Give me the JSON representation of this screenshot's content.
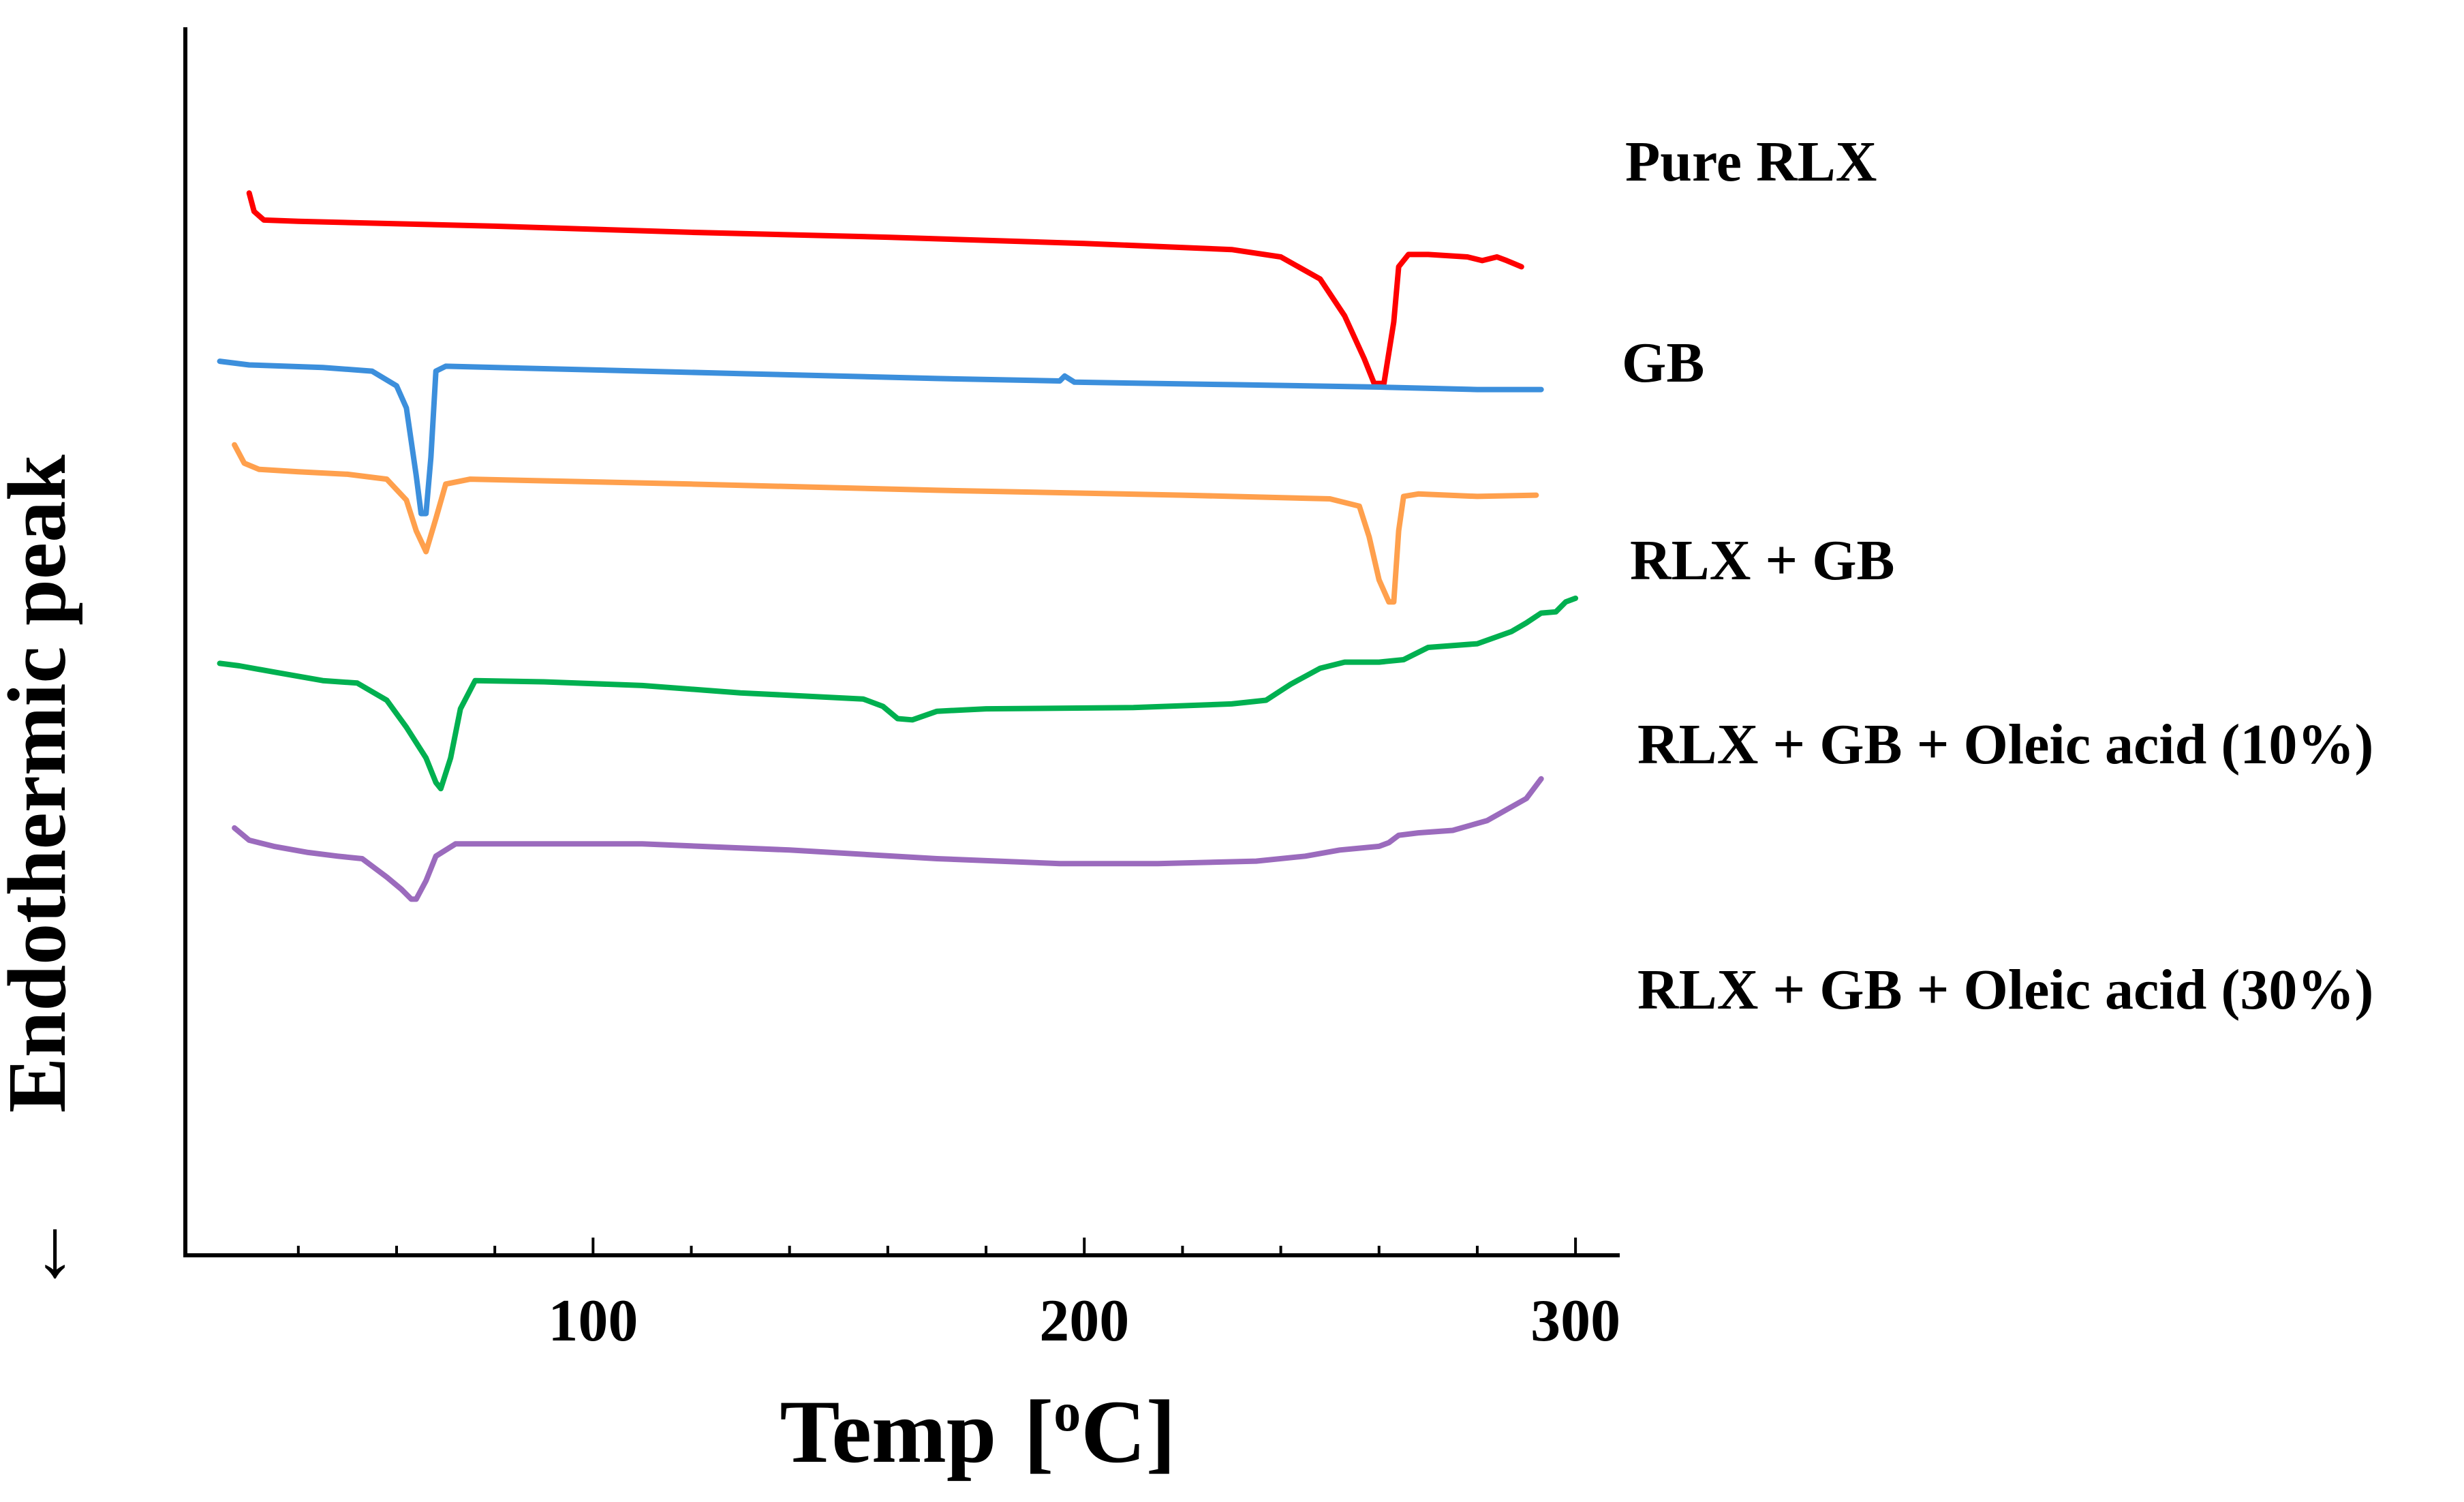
{
  "chart_data": {
    "type": "line",
    "title": "",
    "xlabel": "Temp [°C]",
    "xlabel_parts": {
      "main": "Temp",
      "open": "[",
      "sup": "o",
      "unit": "C",
      "close": "]"
    },
    "ylabel": "Endothermic peak",
    "ylabel_arrow": "←",
    "xlim": [
      17,
      309
    ],
    "xticks": [
      100,
      200,
      300
    ],
    "xtick_labels": [
      "100",
      "200",
      "300"
    ],
    "minor_tick_step": 20,
    "grid": false,
    "legend_placement": "right, beside each curve",
    "y_units": "heat flow (arbitrary, offset per trace)",
    "series": [
      {
        "name": "Pure RLX",
        "color": "#ff0000",
        "points": [
          [
            30,
            86.5
          ],
          [
            31,
            85.0
          ],
          [
            33,
            84.3
          ],
          [
            40,
            84.2
          ],
          [
            80,
            83.8
          ],
          [
            120,
            83.3
          ],
          [
            160,
            82.9
          ],
          [
            200,
            82.4
          ],
          [
            230,
            81.9
          ],
          [
            240,
            81.3
          ],
          [
            248,
            79.5
          ],
          [
            253,
            76.5
          ],
          [
            257,
            73.0
          ],
          [
            259,
            71.0
          ],
          [
            261,
            71.0
          ],
          [
            263,
            76.0
          ],
          [
            264,
            80.5
          ],
          [
            266,
            81.5
          ],
          [
            270,
            81.5
          ],
          [
            278,
            81.3
          ],
          [
            281,
            81.0
          ],
          [
            284,
            81.3
          ],
          [
            286,
            81.0
          ],
          [
            289,
            80.5
          ]
        ]
      },
      {
        "name": "GB",
        "color": "#3c8fdc",
        "points": [
          [
            24,
            72.8
          ],
          [
            30,
            72.5
          ],
          [
            45,
            72.3
          ],
          [
            55,
            72.0
          ],
          [
            60,
            70.8
          ],
          [
            62,
            69.0
          ],
          [
            64,
            63.5
          ],
          [
            65,
            60.4
          ],
          [
            66,
            60.4
          ],
          [
            67,
            65.0
          ],
          [
            68,
            72.0
          ],
          [
            70,
            72.4
          ],
          [
            90,
            72.2
          ],
          [
            130,
            71.8
          ],
          [
            170,
            71.4
          ],
          [
            195,
            71.2
          ],
          [
            196,
            71.6
          ],
          [
            198,
            71.1
          ],
          [
            230,
            70.9
          ],
          [
            260,
            70.7
          ],
          [
            280,
            70.5
          ],
          [
            293,
            70.5
          ]
        ]
      },
      {
        "name": "RLX + GB",
        "color": "#ffa04d",
        "points": [
          [
            27,
            66.0
          ],
          [
            29,
            64.5
          ],
          [
            32,
            64.0
          ],
          [
            40,
            63.8
          ],
          [
            50,
            63.6
          ],
          [
            58,
            63.2
          ],
          [
            62,
            61.5
          ],
          [
            64,
            59.0
          ],
          [
            66,
            57.3
          ],
          [
            68,
            60.0
          ],
          [
            70,
            62.8
          ],
          [
            75,
            63.2
          ],
          [
            120,
            62.8
          ],
          [
            170,
            62.3
          ],
          [
            220,
            61.9
          ],
          [
            250,
            61.6
          ],
          [
            256,
            61.0
          ],
          [
            258,
            58.5
          ],
          [
            260,
            55.0
          ],
          [
            262,
            53.2
          ],
          [
            263,
            53.2
          ],
          [
            264,
            59.0
          ],
          [
            265,
            61.8
          ],
          [
            268,
            62.0
          ],
          [
            280,
            61.8
          ],
          [
            292,
            61.9
          ]
        ]
      },
      {
        "name": "RLX + GB + Oleic acid (10%)",
        "color": "#00b050",
        "points": [
          [
            24,
            48.2
          ],
          [
            28,
            48.0
          ],
          [
            35,
            47.5
          ],
          [
            45,
            46.8
          ],
          [
            52,
            46.6
          ],
          [
            58,
            45.2
          ],
          [
            62,
            43.0
          ],
          [
            66,
            40.5
          ],
          [
            68,
            38.5
          ],
          [
            69,
            38.0
          ],
          [
            71,
            40.5
          ],
          [
            73,
            44.5
          ],
          [
            76,
            46.8
          ],
          [
            90,
            46.7
          ],
          [
            110,
            46.4
          ],
          [
            130,
            45.8
          ],
          [
            155,
            45.3
          ],
          [
            159,
            44.7
          ],
          [
            162,
            43.7
          ],
          [
            165,
            43.6
          ],
          [
            170,
            44.3
          ],
          [
            180,
            44.5
          ],
          [
            210,
            44.6
          ],
          [
            230,
            44.9
          ],
          [
            237,
            45.2
          ],
          [
            242,
            46.5
          ],
          [
            248,
            47.8
          ],
          [
            253,
            48.3
          ],
          [
            260,
            48.3
          ],
          [
            265,
            48.5
          ],
          [
            270,
            49.5
          ],
          [
            280,
            49.8
          ],
          [
            287,
            50.8
          ],
          [
            290,
            51.5
          ],
          [
            293,
            52.3
          ],
          [
            296,
            52.4
          ],
          [
            298,
            53.2
          ],
          [
            300,
            53.5
          ]
        ]
      },
      {
        "name": "RLX + GB + Oleic acid (30%)",
        "color": "#9b6bbd",
        "points": [
          [
            27,
            34.8
          ],
          [
            30,
            33.8
          ],
          [
            35,
            33.3
          ],
          [
            42,
            32.8
          ],
          [
            48,
            32.5
          ],
          [
            53,
            32.3
          ],
          [
            58,
            30.8
          ],
          [
            61,
            29.8
          ],
          [
            63,
            29.0
          ],
          [
            64,
            29.0
          ],
          [
            66,
            30.5
          ],
          [
            68,
            32.5
          ],
          [
            72,
            33.5
          ],
          [
            90,
            33.5
          ],
          [
            110,
            33.5
          ],
          [
            140,
            33.0
          ],
          [
            170,
            32.3
          ],
          [
            195,
            31.9
          ],
          [
            215,
            31.9
          ],
          [
            235,
            32.1
          ],
          [
            245,
            32.5
          ],
          [
            252,
            33.0
          ],
          [
            260,
            33.3
          ],
          [
            262,
            33.6
          ],
          [
            264,
            34.2
          ],
          [
            268,
            34.4
          ],
          [
            275,
            34.6
          ],
          [
            282,
            35.4
          ],
          [
            290,
            37.2
          ],
          [
            293,
            38.8
          ]
        ]
      }
    ]
  }
}
